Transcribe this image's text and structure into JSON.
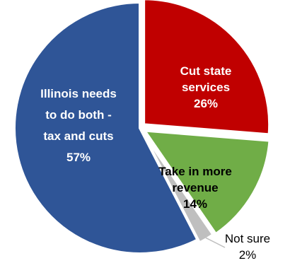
{
  "chart_data": {
    "type": "pie",
    "start": "top",
    "direction": "clockwise",
    "legend": "none",
    "slices": [
      {
        "name": "Cut state services",
        "value": 26,
        "value_label": "26%",
        "label_lines": [
          "Cut state",
          "services"
        ],
        "color": "#c00000",
        "label_color": "#ffffff"
      },
      {
        "name": "Take in more revenue",
        "value": 14,
        "value_label": "14%",
        "label_lines": [
          "Take in more",
          "revenue"
        ],
        "color": "#70ad47",
        "label_color": "#000000"
      },
      {
        "name": "Not sure",
        "value": 2,
        "value_label": "2%",
        "label_lines": [
          "Not sure"
        ],
        "color": "#bfbfbf",
        "label_color": "#000000"
      },
      {
        "name": "Illinois needs to do both - tax and cuts",
        "value": 57,
        "value_label": "57%",
        "label_lines": [
          "Illinois needs",
          "to do both -",
          "tax and cuts"
        ],
        "color": "#2f5597",
        "label_color": "#ffffff"
      }
    ]
  }
}
